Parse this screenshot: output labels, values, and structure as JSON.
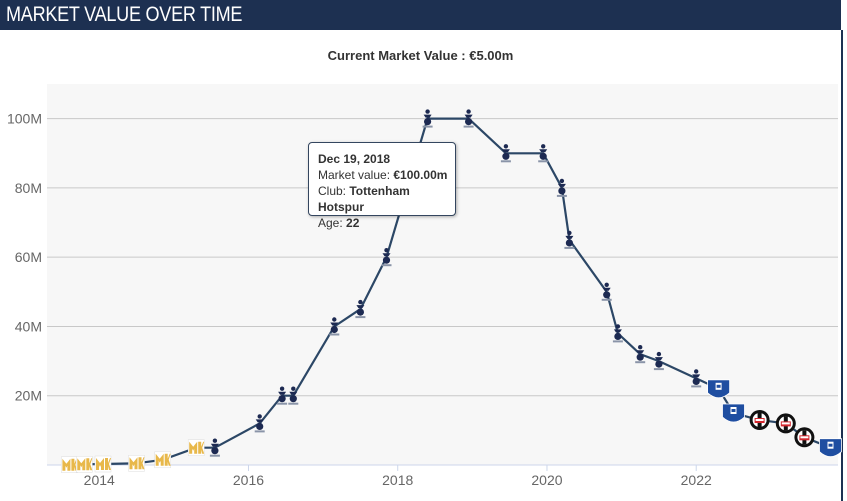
{
  "header": {
    "title": "MARKET VALUE OVER TIME"
  },
  "subtitle": "Current Market Value : €5.00m",
  "tooltip": {
    "date": "Dec 19, 2018",
    "market_value_label": "Market value: ",
    "market_value": "€100.00m",
    "club_label": "Club: ",
    "club": "Tottenham Hotspur",
    "age_label": "Age: ",
    "age": "22"
  },
  "colors": {
    "line": "#2c4766",
    "header": "#1d3051",
    "plot_bg": "#f7f7f7",
    "grid": "#c8c8c8"
  },
  "clubs": {
    "mk": {
      "name": "MK Dons",
      "icon": "mk-dons-crest-icon",
      "color": "#e8b84a"
    },
    "tot": {
      "name": "Tottenham Hotspur",
      "icon": "tottenham-crest-icon",
      "color": "#1d2a52"
    },
    "eve": {
      "name": "Everton",
      "icon": "everton-crest-icon",
      "color": "#1f4ea1"
    },
    "bes": {
      "name": "Besiktas",
      "icon": "besiktas-crest-icon",
      "color": "#111111"
    }
  },
  "chart_data": {
    "type": "line",
    "title": "",
    "xlabel": "",
    "ylabel": "",
    "xlim": [
      2013.3,
      2023.9
    ],
    "ylim": [
      0,
      110
    ],
    "x_ticks": [
      2014,
      2016,
      2018,
      2020,
      2022
    ],
    "x_tick_labels": [
      "2014",
      "2016",
      "2018",
      "2020",
      "2022"
    ],
    "y_ticks": [
      20,
      40,
      60,
      80,
      100
    ],
    "y_tick_labels": [
      "20M",
      "40M",
      "60M",
      "80M",
      "100M"
    ],
    "grid": true,
    "legend": "none",
    "series": [
      {
        "values": [
          {
            "x": 2013.6,
            "y": 0.1,
            "club": "mk"
          },
          {
            "x": 2013.8,
            "y": 0.2,
            "club": "mk"
          },
          {
            "x": 2014.05,
            "y": 0.3,
            "club": "mk"
          },
          {
            "x": 2014.5,
            "y": 0.5,
            "club": "mk"
          },
          {
            "x": 2014.85,
            "y": 1.5,
            "club": "mk"
          },
          {
            "x": 2015.3,
            "y": 5,
            "club": "mk"
          },
          {
            "x": 2015.55,
            "y": 5,
            "club": "tot"
          },
          {
            "x": 2016.15,
            "y": 12,
            "club": "tot"
          },
          {
            "x": 2016.45,
            "y": 20,
            "club": "tot"
          },
          {
            "x": 2016.6,
            "y": 20,
            "club": "tot"
          },
          {
            "x": 2017.15,
            "y": 40,
            "club": "tot"
          },
          {
            "x": 2017.5,
            "y": 45,
            "club": "tot"
          },
          {
            "x": 2017.85,
            "y": 60,
            "club": "tot"
          },
          {
            "x": 2018.4,
            "y": 100,
            "club": "tot"
          },
          {
            "x": 2018.95,
            "y": 100,
            "club": "tot"
          },
          {
            "x": 2019.45,
            "y": 90,
            "club": "tot"
          },
          {
            "x": 2019.95,
            "y": 90,
            "club": "tot"
          },
          {
            "x": 2020.2,
            "y": 80,
            "club": "tot"
          },
          {
            "x": 2020.3,
            "y": 65,
            "club": "tot"
          },
          {
            "x": 2020.8,
            "y": 50,
            "club": "tot"
          },
          {
            "x": 2020.95,
            "y": 38,
            "club": "tot"
          },
          {
            "x": 2021.25,
            "y": 32,
            "club": "tot"
          },
          {
            "x": 2021.5,
            "y": 30,
            "club": "tot"
          },
          {
            "x": 2022.0,
            "y": 25,
            "club": "tot"
          },
          {
            "x": 2022.3,
            "y": 22,
            "club": "eve"
          },
          {
            "x": 2022.5,
            "y": 15,
            "club": "eve"
          },
          {
            "x": 2022.85,
            "y": 13,
            "club": "bes"
          },
          {
            "x": 2023.2,
            "y": 12,
            "club": "bes"
          },
          {
            "x": 2023.45,
            "y": 8,
            "club": "bes"
          },
          {
            "x": 2023.8,
            "y": 5,
            "club": "eve"
          }
        ]
      }
    ]
  }
}
